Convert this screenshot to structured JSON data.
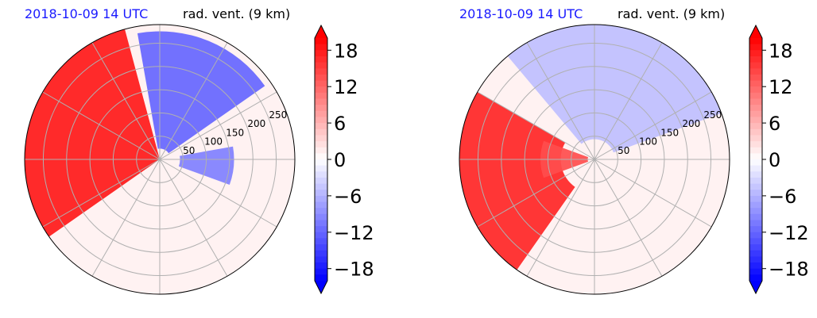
{
  "panels": [
    {
      "timestamp": "2018-10-09 14 UTC",
      "field_label": "rad. vent. (9 km)"
    },
    {
      "timestamp": "2018-10-09 14 UTC",
      "field_label": "rad. vent. (9 km)"
    }
  ],
  "chart_data": [
    {
      "type": "heatmap",
      "projection": "polar",
      "title": "rad. vent. (9 km)",
      "time_label": "2018-10-09 14 UTC",
      "radial_ticks": [
        50,
        100,
        150,
        200,
        250
      ],
      "radial_max": 290,
      "angular_gridlines_deg": [
        0,
        30,
        60,
        90,
        120,
        150,
        180,
        210,
        240,
        270,
        300,
        330
      ],
      "grid": true,
      "colorbar": {
        "ticks": [
          18,
          12,
          6,
          0,
          -6,
          -12,
          -18
        ],
        "tick_labels": [
          "18",
          "12",
          "6",
          "0",
          "−6",
          "−12",
          "−18"
        ],
        "range": [
          -20,
          20
        ],
        "extend": "both",
        "colormap": "bwr",
        "position": "right"
      },
      "regions": [
        {
          "description": "west sector, strong positive",
          "approx_value": 18
        },
        {
          "description": "north / northeast sector, negative",
          "approx_value": -12
        },
        {
          "description": "east near centre, negative",
          "approx_value": -10
        },
        {
          "description": "south half, weak positive",
          "approx_value": 1
        }
      ]
    },
    {
      "type": "heatmap",
      "projection": "polar",
      "title": "rad. vent. (9 km)",
      "time_label": "2018-10-09 14 UTC",
      "radial_ticks": [
        50,
        100,
        150,
        200,
        250
      ],
      "radial_max": 290,
      "angular_gridlines_deg": [
        0,
        30,
        60,
        90,
        120,
        150,
        180,
        210,
        240,
        270,
        300,
        330
      ],
      "grid": true,
      "colorbar": {
        "ticks": [
          18,
          12,
          6,
          0,
          -6,
          -12,
          -18
        ],
        "tick_labels": [
          "18",
          "12",
          "6",
          "0",
          "−6",
          "−12",
          "−18"
        ],
        "range": [
          -20,
          20
        ],
        "extend": "both",
        "colormap": "bwr",
        "position": "right"
      },
      "regions": [
        {
          "description": "southwest sector, strong positive",
          "approx_value": 17
        },
        {
          "description": "west near centre, positive",
          "approx_value": 14
        },
        {
          "description": "north / northeast, weak negative",
          "approx_value": -5
        },
        {
          "description": "south half, weak positive",
          "approx_value": 1
        }
      ]
    }
  ]
}
